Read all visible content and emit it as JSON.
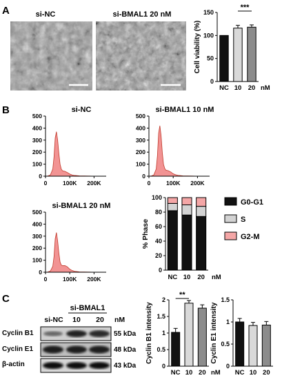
{
  "panels": {
    "a": {
      "letter": "A",
      "micrograph_labels": [
        "si-NC",
        "si-BMAL1 20 nM"
      ],
      "bar_chart": {
        "ylabel": "Cell viability (%)",
        "unit": "nM",
        "significance": "***"
      }
    },
    "b": {
      "letter": "B",
      "histograms": [
        {
          "title": "si-NC"
        },
        {
          "title": "si-BMAL1 10 nM"
        },
        {
          "title": "si-BMAL1 20 nM"
        }
      ],
      "hist_yticks": [
        "0",
        "100",
        "200",
        "300",
        "400",
        "500"
      ],
      "hist_xticks": [
        "0",
        "100K",
        "200K"
      ],
      "phase_chart": {
        "ylabel": "% Phase",
        "unit": "nM",
        "legend": [
          "G0-G1",
          "S",
          "G2-M"
        ]
      }
    },
    "c": {
      "letter": "C",
      "blot": {
        "group_label": "si-BMAL1",
        "lane_labels": [
          "si-NC",
          "10",
          "20"
        ],
        "unit": "nM",
        "rows": [
          {
            "protein": "Cyclin B1",
            "size": "55 kDa"
          },
          {
            "protein": "Cyclin E1",
            "size": "48 kDa"
          },
          {
            "protein": "β-actin",
            "size": "43 kDa"
          }
        ]
      },
      "b1_chart": {
        "ylabel": "Cyclin B1 intensity",
        "unit": "nM",
        "significance": "**"
      },
      "e1_chart": {
        "ylabel": "Cyclin E1 intensity"
      }
    }
  },
  "colors": {
    "black": "#111111",
    "light_gray": "#d9d9d9",
    "mid_gray": "#8c8c8c",
    "histogram_fill": "#f08080",
    "histogram_line": "#c0392b",
    "s_phase": "#d3d3d3",
    "g2m_phase": "#f4a6a6"
  },
  "chart_data": [
    {
      "type": "bar",
      "ylabel": "Cell viability (%)",
      "categories": [
        "NC",
        "10",
        "20"
      ],
      "values": [
        100,
        116,
        118
      ],
      "errors": [
        0,
        6,
        5
      ],
      "ylim": [
        0,
        150
      ],
      "yticks": [
        0,
        50,
        100,
        150
      ],
      "colors": [
        "#111111",
        "#d9d9d9",
        "#8c8c8c"
      ]
    },
    {
      "type": "bar",
      "stacked": true,
      "ylabel": "% Phase",
      "categories": [
        "NC",
        "10",
        "20"
      ],
      "series": [
        {
          "name": "G0-G1",
          "values": [
            82,
            76,
            74
          ]
        },
        {
          "name": "S",
          "values": [
            10,
            14,
            14
          ]
        },
        {
          "name": "G2-M",
          "values": [
            8,
            10,
            12
          ]
        }
      ],
      "ylim": [
        0,
        100
      ],
      "yticks": [
        0,
        20,
        40,
        60,
        80,
        100
      ],
      "legend_position": "right"
    },
    {
      "type": "bar",
      "ylabel": "Cyclin B1 intensity",
      "categories": [
        "NC",
        "10",
        "20"
      ],
      "values": [
        1.02,
        1.9,
        1.75
      ],
      "errors": [
        0.12,
        0.08,
        0.1
      ],
      "ylim": [
        0,
        2.0
      ],
      "yticks": [
        0,
        0.5,
        1.0,
        1.5,
        2.0
      ]
    },
    {
      "type": "bar",
      "ylabel": "Cyclin E1 intensity",
      "categories": [
        "NC",
        "10",
        "20"
      ],
      "values": [
        1.0,
        0.92,
        0.93
      ],
      "errors": [
        0.08,
        0.07,
        0.08
      ],
      "ylim": [
        0,
        1.5
      ],
      "yticks": [
        0,
        0.5,
        1.0,
        1.5
      ]
    },
    {
      "type": "area",
      "title": "si-NC",
      "x": [
        0,
        10,
        20,
        30,
        35,
        40,
        45,
        50,
        55,
        60,
        65,
        70,
        80,
        90,
        100,
        110,
        120,
        140,
        160,
        180,
        200,
        230
      ],
      "y": [
        0,
        2,
        10,
        60,
        160,
        320,
        370,
        300,
        190,
        100,
        60,
        45,
        40,
        30,
        18,
        10,
        6,
        3,
        2,
        1,
        0,
        0
      ],
      "xlim": [
        0,
        250
      ],
      "ylim": [
        0,
        500
      ]
    },
    {
      "type": "area",
      "title": "si-BMAL1 10 nM",
      "x": [
        0,
        10,
        20,
        30,
        35,
        40,
        45,
        50,
        55,
        60,
        65,
        70,
        80,
        90,
        100,
        110,
        120,
        140,
        160,
        180,
        200,
        230
      ],
      "y": [
        0,
        2,
        10,
        60,
        170,
        360,
        420,
        340,
        200,
        100,
        65,
        50,
        45,
        35,
        20,
        12,
        7,
        3,
        2,
        1,
        0,
        0
      ],
      "xlim": [
        0,
        250
      ],
      "ylim": [
        0,
        500
      ]
    },
    {
      "type": "area",
      "title": "si-BMAL1 20 nM",
      "x": [
        0,
        10,
        20,
        30,
        35,
        40,
        45,
        50,
        55,
        60,
        65,
        70,
        80,
        90,
        100,
        110,
        120,
        140,
        160,
        180,
        200,
        230
      ],
      "y": [
        0,
        2,
        10,
        50,
        130,
        280,
        330,
        260,
        160,
        85,
        60,
        55,
        55,
        45,
        25,
        14,
        8,
        3,
        2,
        1,
        0,
        0
      ],
      "xlim": [
        0,
        250
      ],
      "ylim": [
        0,
        500
      ]
    }
  ]
}
